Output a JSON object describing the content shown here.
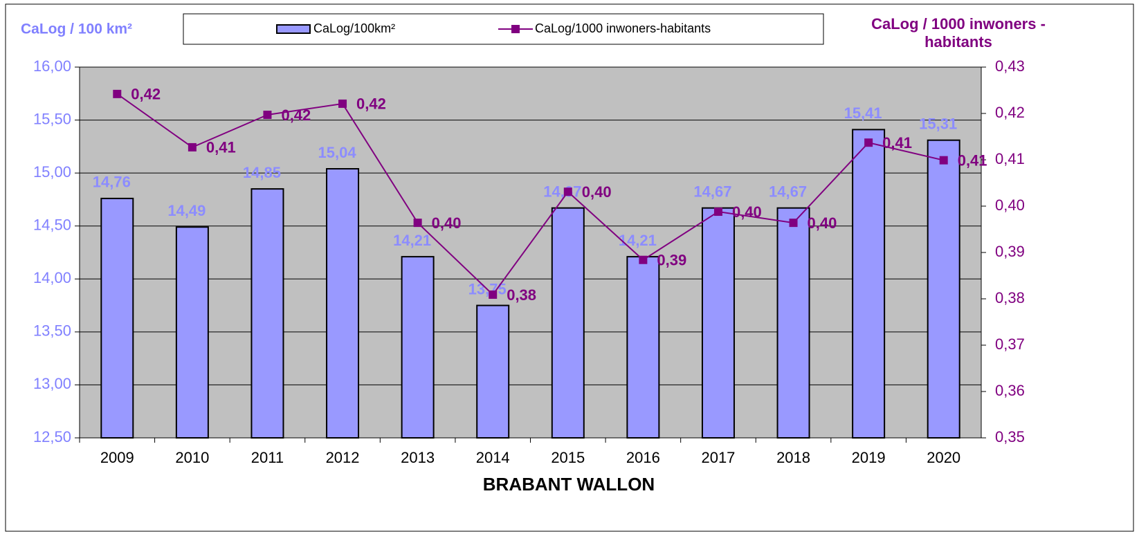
{
  "chart_data": {
    "type": "bar_line",
    "title": "BRABANT WALLON",
    "y_axis_title": "CaLog / 100 km²",
    "y2_axis_title": "CaLog / 1000 inwoners - habitants",
    "categories": [
      "2009",
      "2010",
      "2011",
      "2012",
      "2013",
      "2014",
      "2015",
      "2016",
      "2017",
      "2018",
      "2019",
      "2020"
    ],
    "series": [
      {
        "name": "CaLog/100km²",
        "type": "bar",
        "color": "#9999ff",
        "values": [
          14.76,
          14.49,
          14.85,
          15.04,
          14.21,
          13.75,
          14.67,
          14.21,
          14.67,
          14.67,
          15.41,
          15.31
        ],
        "value_labels": [
          "14,76",
          "14,49",
          "14,85",
          "15,04",
          "14,21",
          "13,75",
          "14,67",
          "14,21",
          "14,67",
          "14,67",
          "15,41",
          "15,31"
        ]
      },
      {
        "name": "CaLog/1000 inwoners-habitants",
        "type": "line",
        "axis": "y2",
        "color": "#800080",
        "values": [
          0.4242,
          0.4127,
          0.4197,
          0.4221,
          0.3964,
          0.3809,
          0.4031,
          0.3884,
          0.3988,
          0.3964,
          0.4137,
          0.4099
        ],
        "value_labels": [
          "0,42",
          "0,41",
          "0,42",
          "0,42",
          "0,40",
          "0,38",
          "0,40",
          "0,39",
          "0,40",
          "0,40",
          "0,41",
          "0,41"
        ]
      }
    ],
    "ylim": [
      12.5,
      16
    ],
    "yticks": [
      {
        "value": 12.5,
        "label": "12,50"
      },
      {
        "value": 13,
        "label": "13,00"
      },
      {
        "value": 13.5,
        "label": "13,50"
      },
      {
        "value": 14,
        "label": "14,00"
      },
      {
        "value": 14.5,
        "label": "14,50"
      },
      {
        "value": 15,
        "label": "15,00"
      },
      {
        "value": 15.5,
        "label": "15,50"
      },
      {
        "value": 16,
        "label": "16,00"
      }
    ],
    "y2lim": [
      0.35,
      0.43
    ],
    "y2ticks": [
      {
        "value": 0.35,
        "label": "0,35"
      },
      {
        "value": 0.36,
        "label": "0,36"
      },
      {
        "value": 0.37,
        "label": "0,37"
      },
      {
        "value": 0.38,
        "label": "0,38"
      },
      {
        "value": 0.39,
        "label": "0,39"
      },
      {
        "value": 0.4,
        "label": "0,40"
      },
      {
        "value": 0.41,
        "label": "0,41"
      },
      {
        "value": 0.42,
        "label": "0,42"
      },
      {
        "value": 0.43,
        "label": "0,43"
      }
    ],
    "grid": true,
    "legend": "top"
  }
}
